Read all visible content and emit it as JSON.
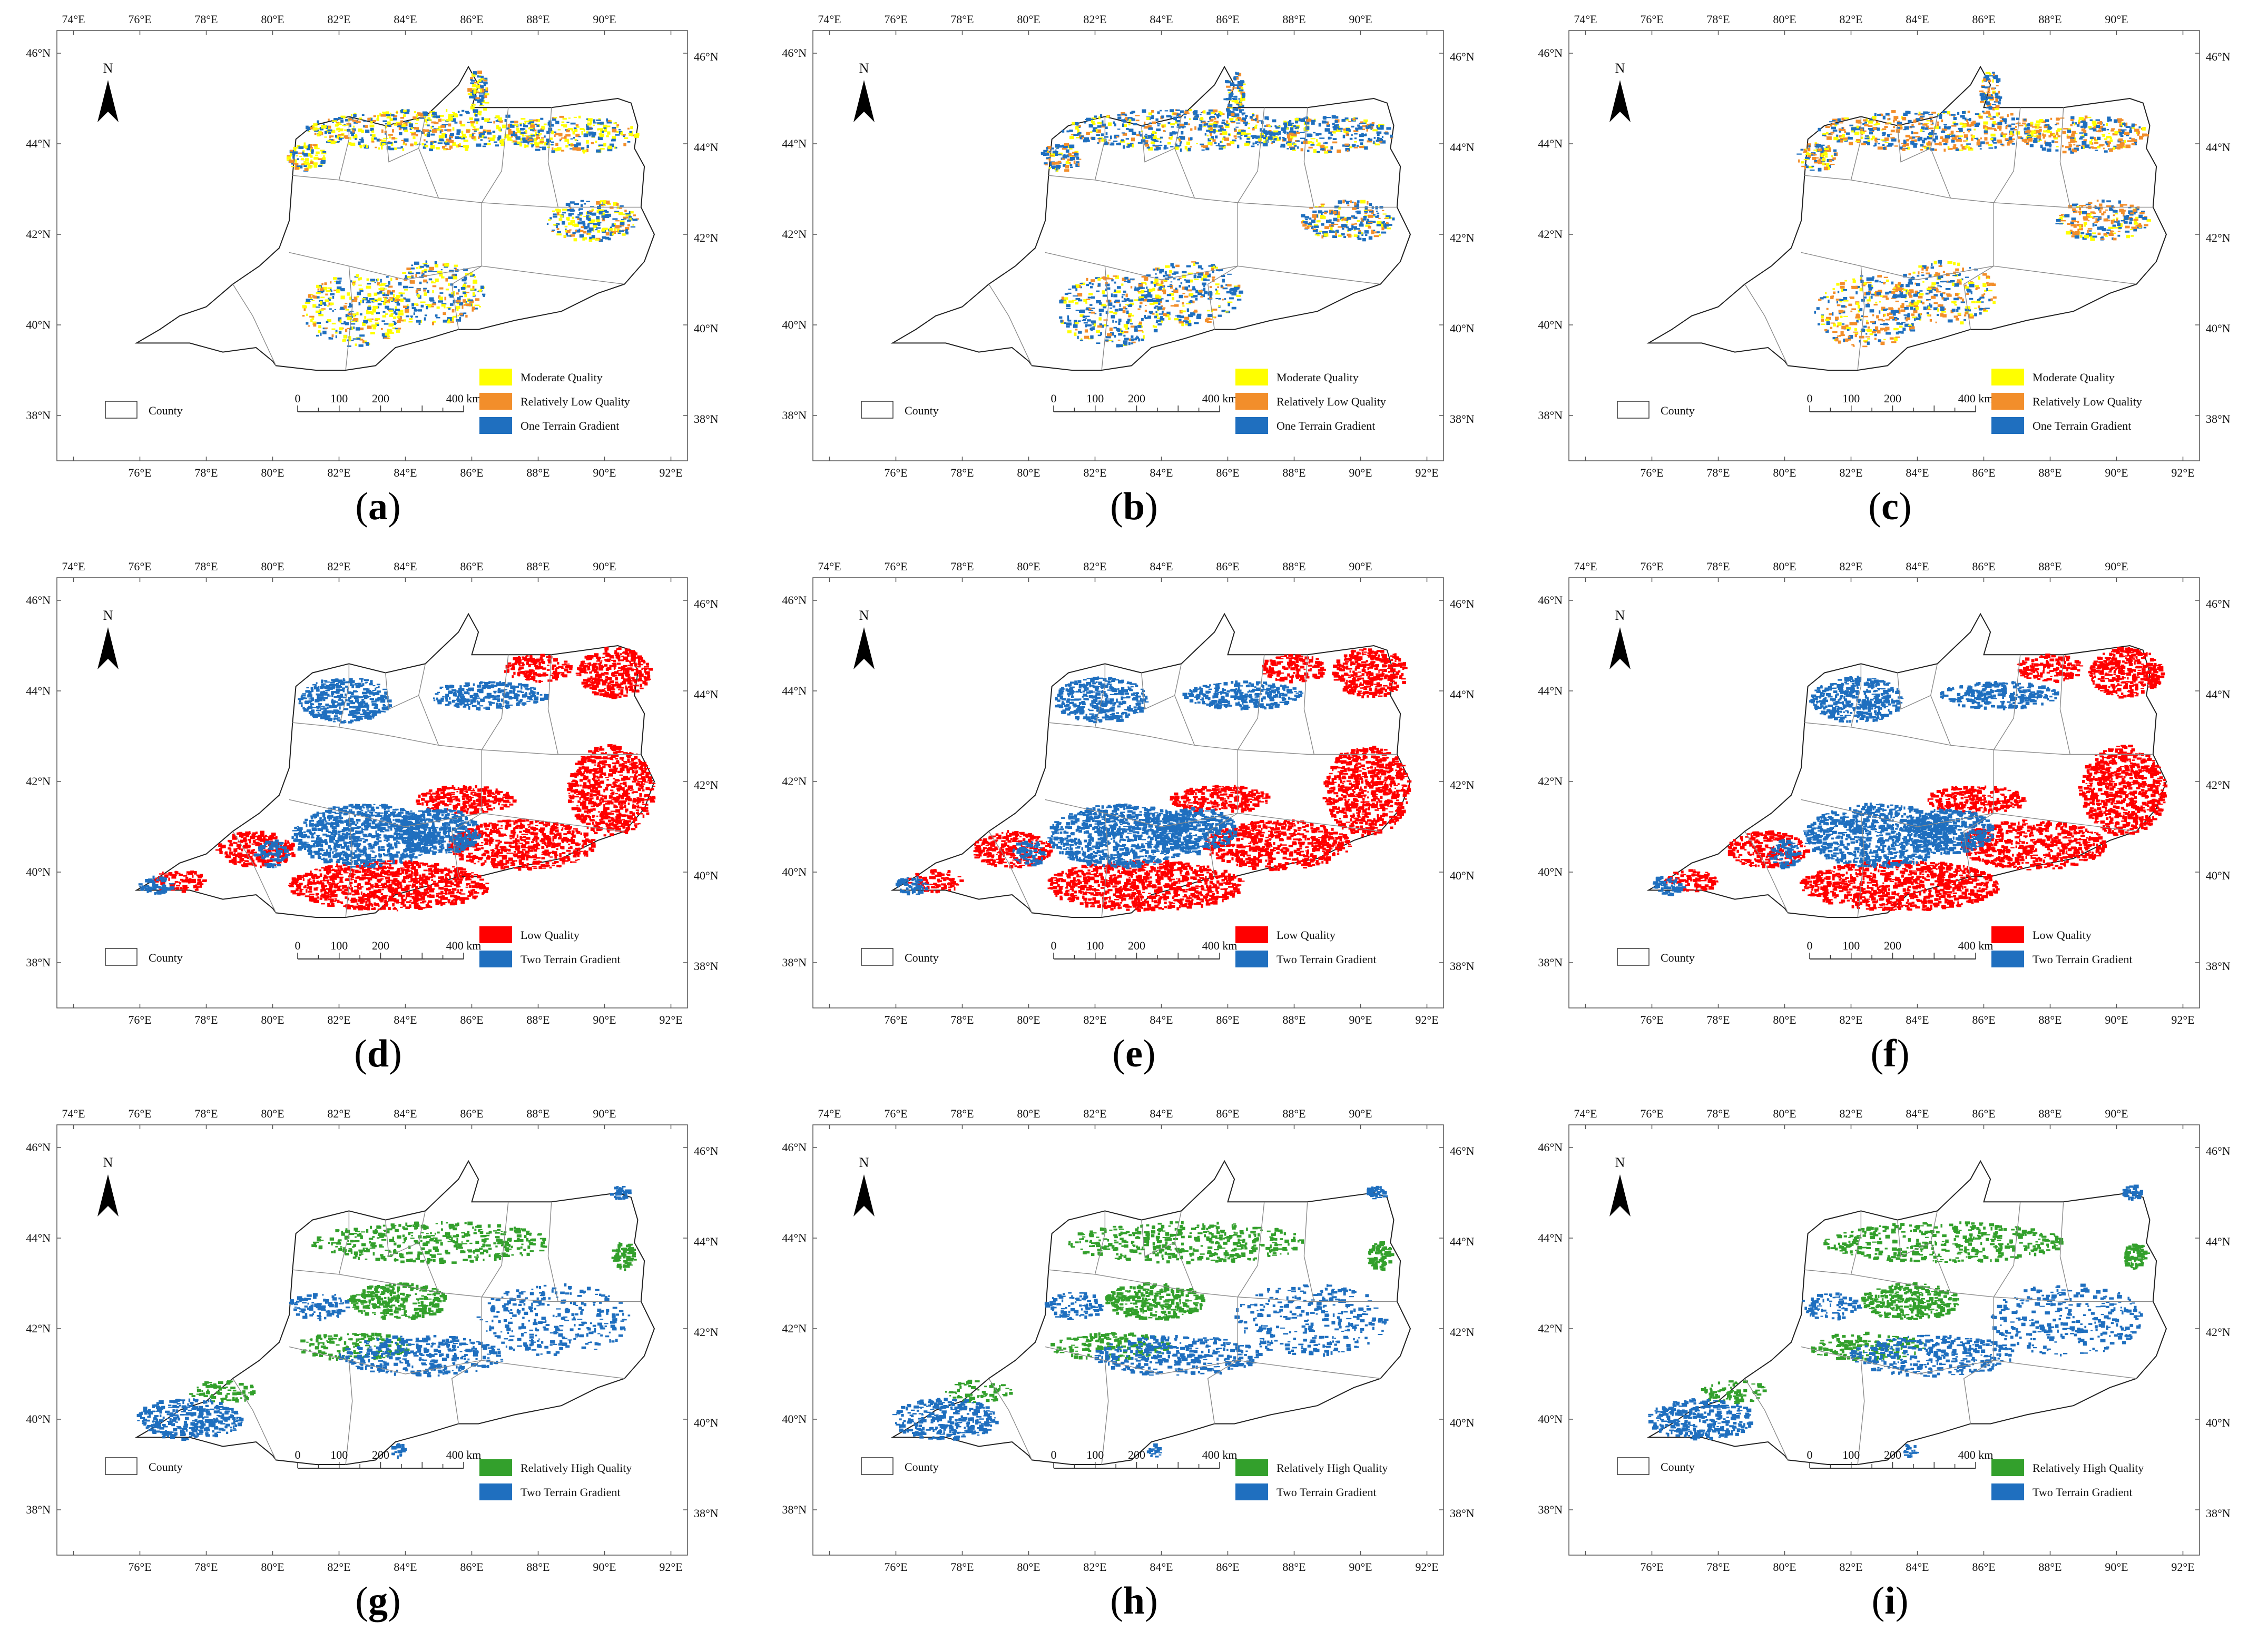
{
  "figure": {
    "lon_labels": [
      "74°E",
      "76°E",
      "78°E",
      "80°E",
      "82°E",
      "84°E",
      "86°E",
      "88°E",
      "90°E",
      "92°E"
    ],
    "lat_labels": [
      "38°N",
      "40°N",
      "42°N",
      "44°N",
      "46°N"
    ],
    "north_label": "N",
    "county_label": "County",
    "scale": {
      "ticks": [
        "0",
        "100",
        "200",
        "400 km"
      ]
    },
    "colors": {
      "moderate": "#ffff00",
      "relatively_low": "#f28e2b",
      "low": "#ff0000",
      "relatively_high": "#33a02c",
      "terrain": "#1f6fbf"
    },
    "legends": {
      "row1": [
        "Moderate Quality",
        "Relatively Low Quality",
        "One Terrain Gradient"
      ],
      "row2": [
        "Low Quality",
        "Two Terrain Gradient"
      ],
      "row3": [
        "Relatively High Quality",
        "Two Terrain Gradient"
      ]
    },
    "panels": [
      {
        "letter": "a",
        "row": 1
      },
      {
        "letter": "b",
        "row": 1
      },
      {
        "letter": "c",
        "row": 1
      },
      {
        "letter": "d",
        "row": 2
      },
      {
        "letter": "e",
        "row": 2
      },
      {
        "letter": "f",
        "row": 2
      },
      {
        "letter": "g",
        "row": 3
      },
      {
        "letter": "h",
        "row": 3
      },
      {
        "letter": "i",
        "row": 3
      }
    ]
  }
}
